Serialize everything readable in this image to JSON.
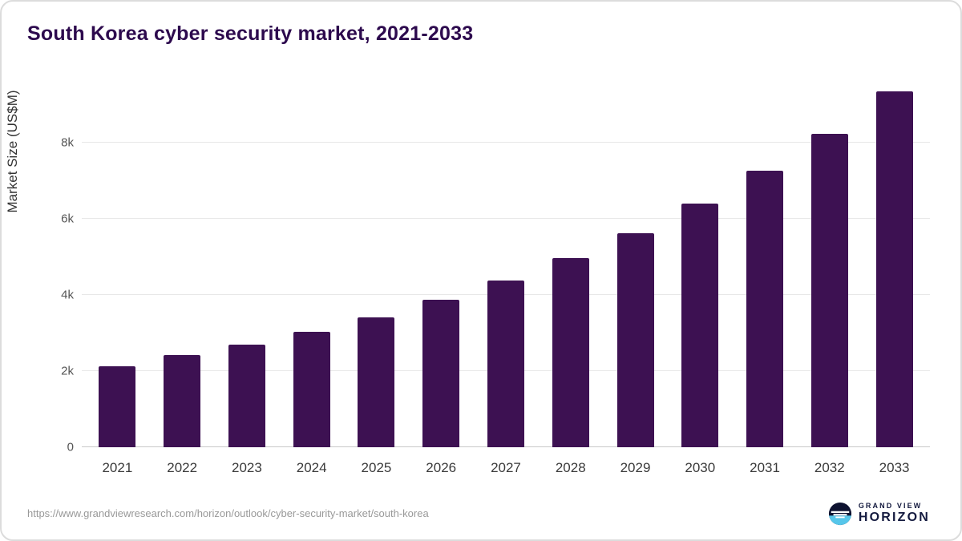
{
  "title": "South Korea cyber security market, 2021-2033",
  "source_url": "https://www.grandviewresearch.com/horizon/outlook/cyber-security-market/south-korea",
  "logo": {
    "line1": "GRAND VIEW",
    "line2": "HORIZON"
  },
  "colors": {
    "bar": "#3d1152",
    "title": "#2d0a4e",
    "logo_accent": "#56c6ea",
    "logo_dark": "#0d1230"
  },
  "chart_data": {
    "type": "bar",
    "title": "South Korea cyber security market, 2021-2033",
    "categories": [
      "2021",
      "2022",
      "2023",
      "2024",
      "2025",
      "2026",
      "2027",
      "2028",
      "2029",
      "2030",
      "2031",
      "2032",
      "2033"
    ],
    "values": [
      2130,
      2420,
      2690,
      3030,
      3420,
      3870,
      4370,
      4970,
      5620,
      6400,
      7260,
      8240,
      9350
    ],
    "xlabel": "",
    "ylabel": "Market Size (US$M)",
    "ylim": [
      0,
      9600
    ],
    "yticks": [
      {
        "value": 0,
        "label": "0"
      },
      {
        "value": 2000,
        "label": "2k"
      },
      {
        "value": 4000,
        "label": "4k"
      },
      {
        "value": 6000,
        "label": "6k"
      },
      {
        "value": 8000,
        "label": "8k"
      }
    ],
    "grid": true,
    "legend": "none",
    "bar_color": "#3d1152"
  }
}
